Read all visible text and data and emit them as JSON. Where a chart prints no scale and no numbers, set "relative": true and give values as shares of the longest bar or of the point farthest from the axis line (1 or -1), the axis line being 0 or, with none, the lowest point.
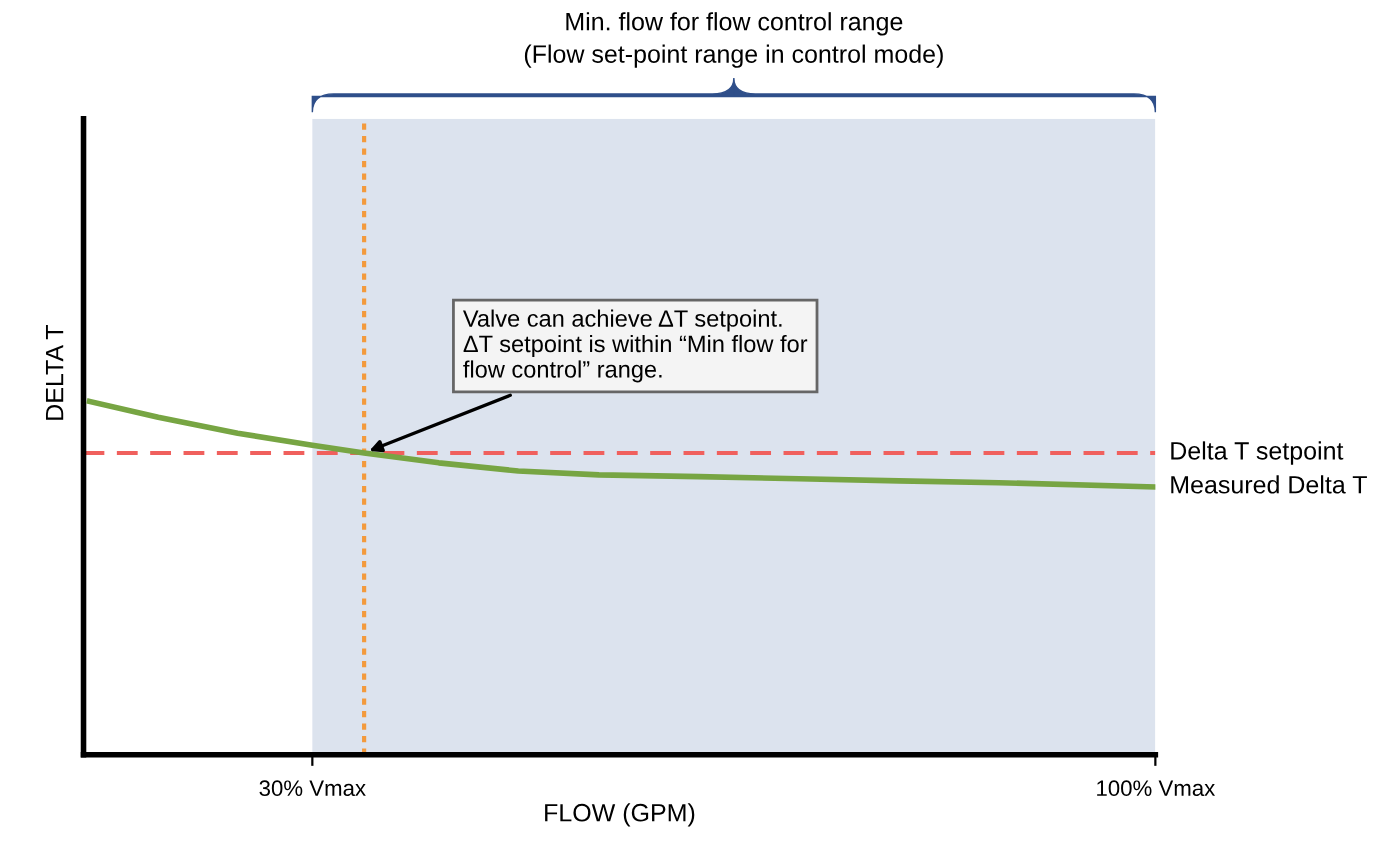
{
  "chart_data": {
    "type": "line",
    "title": "Min. flow for flow control range\n(Flow set-point range in control mode)",
    "xlabel": "FLOW (GPM)",
    "ylabel": "DELTA T",
    "relative": true,
    "x": [
      11.5,
      17.2,
      23.8,
      30,
      34.3,
      40.5,
      47.1,
      53.8,
      62.1,
      70.4,
      78.7,
      87.0,
      100
    ],
    "xlim": [
      11,
      100
    ],
    "xticks": [
      {
        "value": 30,
        "label": "30% Vmax"
      },
      {
        "value": 100,
        "label": "100% Vmax"
      }
    ],
    "series": [
      {
        "name": "Measured Delta T",
        "color": "#77a543",
        "values": [
          1.0,
          0.955,
          0.91,
          0.876,
          0.854,
          0.826,
          0.803,
          0.792,
          0.787,
          0.781,
          0.775,
          0.77,
          0.758
        ]
      }
    ],
    "ref_lines": [
      {
        "axis": "y",
        "value": 0.854,
        "label": "Delta T setpoint",
        "color": "#f0605d",
        "line_style": "dashed"
      },
      {
        "axis": "x",
        "value": 34.3,
        "label": null,
        "color": "#f39a3c",
        "line_style": "dotted"
      }
    ],
    "bands": [
      {
        "axis": "x",
        "from": 30,
        "to": 100,
        "label": null,
        "color": "#dce3ee"
      }
    ],
    "annotations": [
      {
        "text": "Valve can achieve ΔT setpoint.\nΔT setpoint is within “Min flow for\nflow control” range.",
        "x": 34.3,
        "y": 0.854
      }
    ],
    "grid": false,
    "legend": false,
    "marker": "none",
    "line_style": "solid"
  }
}
